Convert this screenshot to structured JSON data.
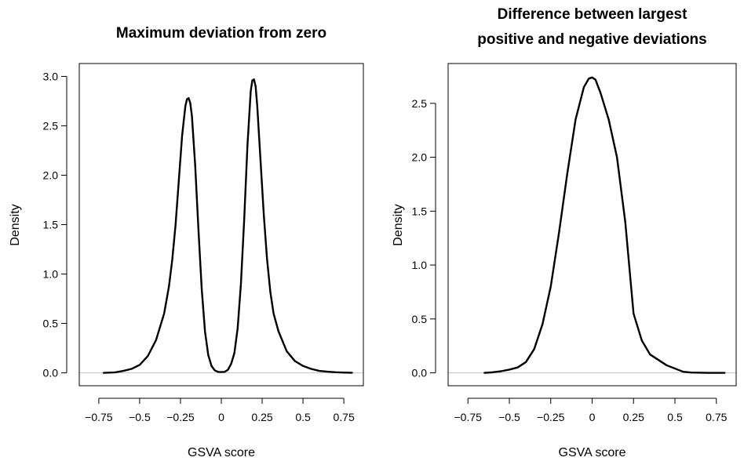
{
  "chart_data": [
    {
      "type": "line",
      "title": [
        "Maximum deviation from zero"
      ],
      "xlabel": "GSVA score",
      "ylabel": "Density",
      "xlim": [
        -0.8,
        0.8
      ],
      "ylim": [
        0,
        3.0
      ],
      "xticks": [
        -0.75,
        -0.5,
        -0.25,
        0,
        0.25,
        0.5,
        0.75
      ],
      "xtick_labels": [
        "−0.75",
        "−0.5",
        "−0.25",
        "0",
        "0.25",
        "0.5",
        "0.75"
      ],
      "yticks": [
        0,
        0.5,
        1.0,
        1.5,
        2.0,
        2.5,
        3.0
      ],
      "ytick_labels": [
        "0.0",
        "0.5",
        "1.0",
        "1.5",
        "2.0",
        "2.5",
        "3.0"
      ],
      "reference_line_y": 0,
      "series": [
        {
          "x": [
            -0.72,
            -0.65,
            -0.6,
            -0.55,
            -0.5,
            -0.45,
            -0.4,
            -0.35,
            -0.32,
            -0.3,
            -0.28,
            -0.26,
            -0.24,
            -0.22,
            -0.21,
            -0.2,
            -0.19,
            -0.18,
            -0.16,
            -0.14,
            -0.12,
            -0.1,
            -0.08,
            -0.06,
            -0.04,
            -0.02,
            0,
            0.02,
            0.04,
            0.06,
            0.08,
            0.1,
            0.12,
            0.14,
            0.16,
            0.18,
            0.19,
            0.2,
            0.21,
            0.22,
            0.24,
            0.26,
            0.28,
            0.3,
            0.32,
            0.35,
            0.4,
            0.45,
            0.5,
            0.55,
            0.6,
            0.65,
            0.7,
            0.75,
            0.8
          ],
          "y": [
            0.0,
            0.005,
            0.02,
            0.04,
            0.08,
            0.17,
            0.33,
            0.6,
            0.88,
            1.15,
            1.5,
            1.95,
            2.4,
            2.7,
            2.77,
            2.78,
            2.73,
            2.6,
            2.1,
            1.45,
            0.85,
            0.42,
            0.18,
            0.07,
            0.025,
            0.01,
            0.008,
            0.01,
            0.03,
            0.09,
            0.2,
            0.45,
            0.9,
            1.55,
            2.3,
            2.85,
            2.96,
            2.97,
            2.9,
            2.7,
            2.15,
            1.6,
            1.15,
            0.82,
            0.6,
            0.42,
            0.22,
            0.12,
            0.07,
            0.04,
            0.02,
            0.012,
            0.006,
            0.003,
            0.001
          ]
        }
      ]
    },
    {
      "type": "line",
      "title": [
        "Difference between largest",
        "positive and negative deviations"
      ],
      "xlabel": "GSVA score",
      "ylabel": "Density",
      "xlim": [
        -0.8,
        0.8
      ],
      "ylim": [
        0,
        2.75
      ],
      "xticks": [
        -0.75,
        -0.5,
        -0.25,
        0,
        0.25,
        0.5,
        0.75
      ],
      "xtick_labels": [
        "−0.75",
        "−0.5",
        "−0.25",
        "0",
        "0.25",
        "0.5",
        "0.75"
      ],
      "yticks": [
        0,
        0.5,
        1.0,
        1.5,
        2.0,
        2.5
      ],
      "ytick_labels": [
        "0.0",
        "0.5",
        "1.0",
        "1.5",
        "2.0",
        "2.5"
      ],
      "reference_line_y": 0,
      "series": [
        {
          "x": [
            -0.65,
            -0.6,
            -0.55,
            -0.5,
            -0.45,
            -0.4,
            -0.35,
            -0.3,
            -0.25,
            -0.2,
            -0.15,
            -0.1,
            -0.05,
            -0.02,
            0,
            0.02,
            0.05,
            0.1,
            0.15,
            0.2,
            0.25,
            0.3,
            0.35,
            0.4,
            0.45,
            0.5,
            0.55,
            0.6,
            0.7,
            0.8
          ],
          "y": [
            0.0,
            0.005,
            0.015,
            0.03,
            0.05,
            0.1,
            0.22,
            0.45,
            0.8,
            1.3,
            1.85,
            2.35,
            2.65,
            2.73,
            2.74,
            2.72,
            2.6,
            2.35,
            2.0,
            1.4,
            0.55,
            0.3,
            0.17,
            0.12,
            0.07,
            0.04,
            0.01,
            0.003,
            0.0,
            0.0
          ]
        }
      ]
    }
  ]
}
